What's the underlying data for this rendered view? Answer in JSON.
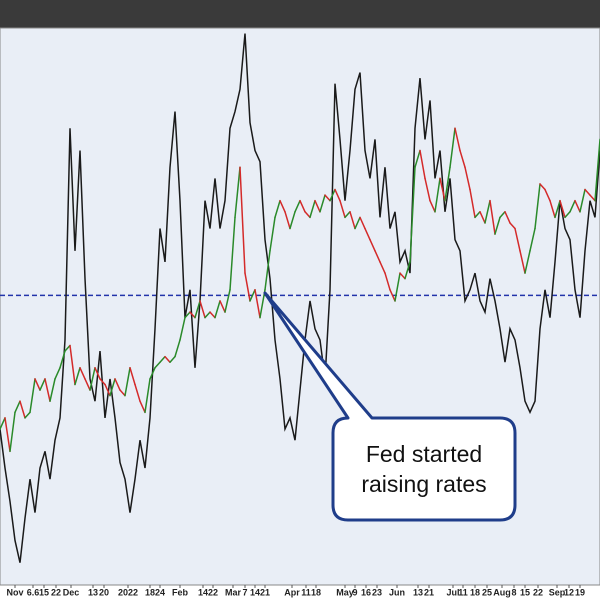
{
  "chart_data": {
    "type": "line",
    "x": [
      0,
      1,
      2,
      3,
      4,
      5,
      6,
      7,
      8,
      9,
      10,
      11,
      12,
      13,
      14,
      15,
      16,
      17,
      18,
      19,
      20,
      21,
      22,
      23,
      24,
      25,
      26,
      27,
      28,
      29,
      30,
      31,
      32,
      33,
      34,
      35,
      36,
      37,
      38,
      39,
      40,
      41,
      42,
      43,
      44,
      45,
      46,
      47,
      48,
      49,
      50,
      51,
      52,
      53,
      54,
      55,
      56,
      57,
      58,
      59,
      60,
      61,
      62,
      63,
      64,
      65,
      66,
      67,
      68,
      69,
      70,
      71,
      72,
      73,
      74,
      75,
      76,
      77,
      78,
      79,
      80,
      81,
      82,
      83,
      84,
      85,
      86,
      87,
      88,
      89,
      90,
      91,
      92,
      93,
      94,
      95,
      96,
      97,
      98,
      99,
      100,
      101,
      102,
      103,
      104,
      105,
      106,
      107,
      108,
      109,
      110,
      111,
      112,
      113,
      114,
      115,
      116,
      117,
      118,
      119,
      120
    ],
    "series": [
      {
        "color": "#1a1a1a",
        "values": [
          28,
          21,
          15,
          8,
          4,
          12,
          19,
          13,
          21,
          24,
          19,
          26,
          30,
          44,
          82,
          60,
          78,
          55,
          37,
          33,
          42,
          30,
          37,
          30,
          22,
          19,
          13,
          19,
          26,
          21,
          30,
          46,
          64,
          58,
          75,
          85,
          69,
          48,
          53,
          39,
          51,
          69,
          64,
          73,
          64,
          69,
          82,
          85,
          89,
          99,
          83,
          78,
          76,
          62,
          55,
          44,
          37,
          28,
          30,
          26,
          35,
          44,
          51,
          46,
          44,
          37,
          53,
          90,
          80,
          69,
          78,
          89,
          92,
          78,
          73,
          80,
          66,
          75,
          64,
          67,
          58,
          60,
          56,
          82,
          91,
          80,
          87,
          73,
          78,
          67,
          73,
          62,
          60,
          51,
          53,
          56,
          51,
          49,
          55,
          51,
          46,
          40,
          46,
          44,
          39,
          33,
          31,
          33,
          46,
          53,
          48,
          58,
          69,
          64,
          62,
          53,
          48,
          60,
          69,
          66,
          78
        ]
      },
      {
        "color": "#2a8a2a",
        "down_color": "#d42a2a",
        "values": [
          28,
          30,
          24,
          31,
          33,
          30,
          31,
          37,
          35,
          37,
          33,
          37,
          39,
          42,
          43,
          36,
          39,
          37,
          35,
          39,
          37,
          36,
          34,
          37,
          35,
          34,
          39,
          36,
          33,
          31,
          37,
          39,
          40,
          41,
          40,
          41,
          44,
          48,
          49,
          48,
          51,
          48,
          49,
          48,
          51,
          49,
          53,
          66,
          75,
          56,
          51,
          53,
          48,
          53,
          60,
          66,
          69,
          67,
          64,
          67,
          69,
          67,
          66,
          69,
          67,
          70,
          69,
          71,
          69,
          66,
          67,
          64,
          66,
          64,
          62,
          60,
          58,
          56,
          53,
          51,
          56,
          55,
          58,
          75,
          78,
          73,
          69,
          67,
          73,
          69,
          75,
          82,
          78,
          75,
          71,
          66,
          67,
          65,
          69,
          63,
          66,
          67,
          65,
          64,
          60,
          56,
          60,
          64,
          72,
          71,
          69,
          66,
          69,
          66,
          67,
          69,
          67,
          71,
          70,
          69,
          80
        ]
      }
    ],
    "xlim": [
      0,
      120
    ],
    "ylim": [
      0,
      100
    ],
    "xticks": [
      {
        "value": 3,
        "label": "Nov"
      },
      6.6,
      {
        "value": 8.8,
        "label": "15"
      },
      {
        "value": 11.2,
        "label": "22"
      },
      {
        "value": 14.2,
        "label": "Dec"
      },
      {
        "value": 18.6,
        "label": "13"
      },
      {
        "value": 20.8,
        "label": "20"
      },
      {
        "value": 25.6,
        "label": "2022"
      },
      {
        "value": 30,
        "label": "18"
      },
      {
        "value": 32,
        "label": "24"
      },
      {
        "value": 36,
        "label": "Feb"
      },
      {
        "value": 40.6,
        "label": "14"
      },
      {
        "value": 42.6,
        "label": "22"
      },
      {
        "value": 46.6,
        "label": "Mar"
      },
      {
        "value": 49,
        "label": "7"
      },
      {
        "value": 51,
        "label": "14"
      },
      {
        "value": 53,
        "label": "21"
      },
      {
        "value": 58.4,
        "label": "Apr"
      },
      {
        "value": 61.2,
        "label": "11"
      },
      {
        "value": 63.2,
        "label": "18"
      },
      {
        "value": 69,
        "label": "May"
      },
      {
        "value": 71,
        "label": "9"
      },
      {
        "value": 73.2,
        "label": "16"
      },
      {
        "value": 75.4,
        "label": "23"
      },
      {
        "value": 79.4,
        "label": "Jun"
      },
      {
        "value": 83.6,
        "label": "13"
      },
      {
        "value": 85.8,
        "label": "21"
      },
      {
        "value": 90.6,
        "label": "Jul"
      },
      {
        "value": 92.6,
        "label": "11"
      },
      {
        "value": 95,
        "label": "18"
      },
      {
        "value": 97.4,
        "label": "25"
      },
      {
        "value": 100.4,
        "label": "Aug"
      },
      {
        "value": 102.8,
        "label": "8"
      },
      {
        "value": 105,
        "label": "15"
      },
      {
        "value": 107.6,
        "label": "22"
      },
      {
        "value": 111.4,
        "label": "Sep"
      },
      {
        "value": 113.8,
        "label": "12"
      },
      {
        "value": 116,
        "label": "19"
      }
    ],
    "reference_line": {
      "value": 52,
      "color": "#2233aa"
    },
    "annotation": "Fed started raising rates"
  }
}
